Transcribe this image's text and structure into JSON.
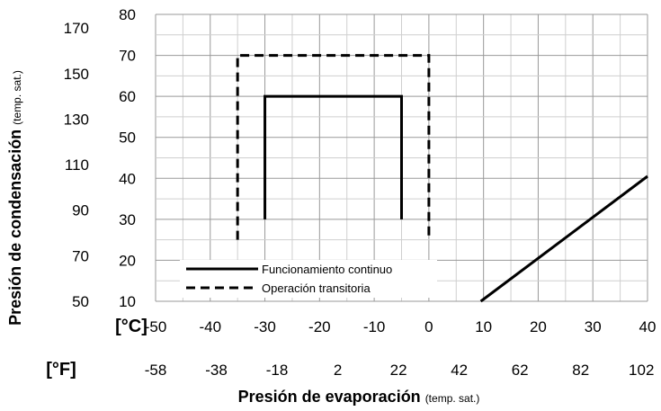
{
  "chart_data": {
    "type": "line",
    "x_unit_primary": "[°C]",
    "x_unit_secondary": "[°F]",
    "x_ticks_c": [
      "-50",
      "-40",
      "-30",
      "-20",
      "-10",
      "0",
      "10",
      "20",
      "30",
      "40"
    ],
    "x_ticks_f": [
      "-58",
      "-38",
      "-18",
      "2",
      "22",
      "42",
      "62",
      "82",
      "102"
    ],
    "y_ticks_c": [
      "10",
      "20",
      "30",
      "40",
      "50",
      "60",
      "70",
      "80"
    ],
    "y_ticks_f": [
      "50",
      "70",
      "90",
      "110",
      "130",
      "150",
      "170"
    ],
    "xlabel_main": "Presión de evaporación",
    "xlabel_sub": "(temp. sat.)",
    "ylabel_main": "Presión de condensación",
    "ylabel_sub": "(temp. sat.)",
    "xlim": [
      -50,
      40
    ],
    "ylim": [
      10,
      80
    ],
    "grid": true,
    "legend_position": "bottom-left",
    "series": [
      {
        "name": "Funcionamiento continuo",
        "style": "solid",
        "color": "#000000",
        "points": [
          [
            -30,
            30
          ],
          [
            -30,
            60
          ],
          [
            -5,
            60
          ],
          [
            -5,
            30
          ]
        ]
      },
      {
        "name": "Operación transitoria",
        "style": "dashed",
        "color": "#000000",
        "points": [
          [
            -35,
            25
          ],
          [
            -35,
            70
          ],
          [
            0,
            70
          ],
          [
            0,
            25
          ]
        ]
      },
      {
        "name": "",
        "style": "solid",
        "color": "#000000",
        "points": [
          [
            9.5,
            10
          ],
          [
            40,
            40.5
          ]
        ]
      }
    ]
  }
}
